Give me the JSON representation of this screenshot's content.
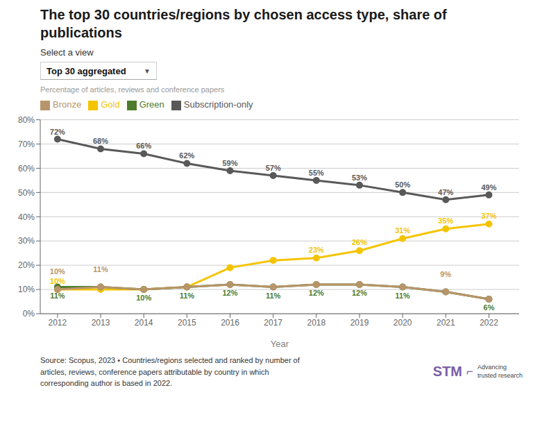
{
  "chart_data": {
    "type": "line",
    "title": "The top 30 countries/regions by chosen access type, share of\npublications",
    "subtitle": "Select a view",
    "x_label": "Year",
    "y_label": "Percentage of articles, reviews and conference papers",
    "x": [
      2012,
      2013,
      2014,
      2015,
      2016,
      2017,
      2018,
      2019,
      2020,
      2021,
      2022
    ],
    "xlim": [
      2011.6,
      2022.7
    ],
    "xticks": [
      2012,
      2013,
      2014,
      2015,
      2016,
      2017,
      2018,
      2019,
      2020,
      2021,
      2022
    ],
    "ylim": [
      0,
      80
    ],
    "yticks": [
      {
        "value": 0,
        "label": "0%"
      },
      {
        "value": 10,
        "label": "10%"
      },
      {
        "value": 20,
        "label": "20%"
      },
      {
        "value": 30,
        "label": "30%"
      },
      {
        "value": 40,
        "label": "40%"
      },
      {
        "value": 50,
        "label": "50%"
      },
      {
        "value": 60,
        "label": "60%"
      },
      {
        "value": 70,
        "label": "70%"
      },
      {
        "value": 80,
        "label": "80%"
      }
    ],
    "grid": true,
    "legend": "top left",
    "data_labels": true,
    "marker": "circle",
    "series": [
      {
        "name": "Gold",
        "color": "#F5C400",
        "values": [
          10,
          10,
          10,
          11,
          19,
          22,
          23,
          26,
          31,
          35,
          37
        ],
        "value_labels": [
          "10%",
          null,
          null,
          null,
          null,
          null,
          "23%",
          "26%",
          "31%",
          "35%",
          "37%"
        ]
      },
      {
        "name": "Green",
        "color": "#4D7C2E",
        "values": [
          11,
          11,
          10,
          11,
          12,
          11,
          12,
          12,
          11,
          9,
          6
        ],
        "value_labels": [
          "11%",
          null,
          "10%",
          "11%",
          "12%",
          "11%",
          "12%",
          "12%",
          "11%",
          null,
          "6%"
        ]
      },
      {
        "name": "Bronze",
        "color": "#B8956A",
        "values": [
          10,
          11,
          10,
          11,
          12,
          11,
          12,
          12,
          11,
          9,
          6
        ],
        "value_labels": [
          "10%",
          "11%",
          null,
          null,
          null,
          null,
          null,
          null,
          null,
          "9%",
          null
        ]
      },
      {
        "name": "Subscription-only",
        "color": "#595959",
        "values": [
          72,
          68,
          66,
          62,
          59,
          57,
          55,
          53,
          50,
          47,
          49
        ],
        "value_labels": [
          "72%",
          "68%",
          "66%",
          "62%",
          "59%",
          "57%",
          "55%",
          "53%",
          "50%",
          "47%",
          "49%"
        ]
      }
    ],
    "annotations": [
      "Top 30 aggregated",
      "▼",
      "Source: Scopus, 2023 • Countries/regions selected and ranked by number of",
      "articles, reviews, conference papers attributable by country in which",
      "corresponding author is based in 2022.",
      "STM",
      "⌐",
      "Advancing",
      "trusted research"
    ]
  }
}
